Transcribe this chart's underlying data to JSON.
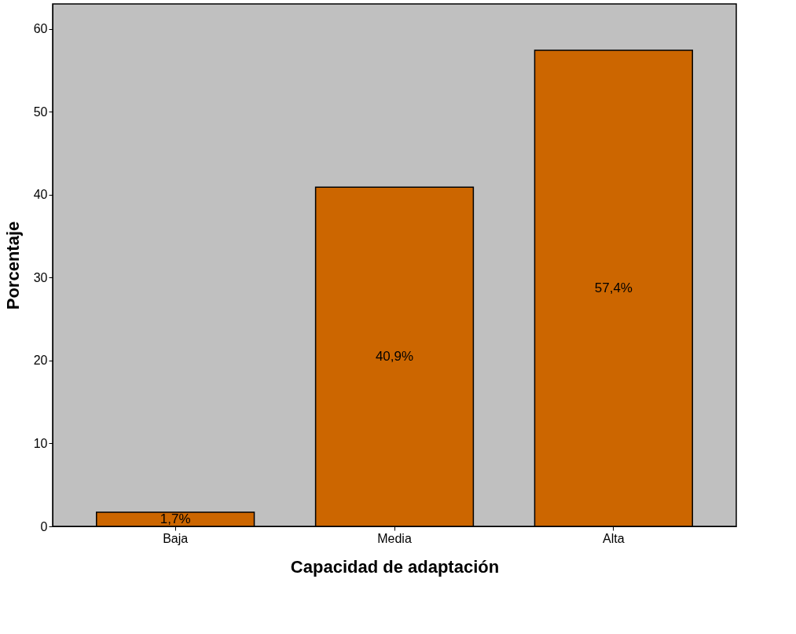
{
  "chart_data": {
    "type": "bar",
    "xlabel": "Capacidad de adaptación",
    "ylabel": "Porcentaje",
    "categories": [
      "Baja",
      "Media",
      "Alta"
    ],
    "values": [
      1.7,
      40.9,
      57.4
    ],
    "value_labels": [
      "1,7%",
      "40,9%",
      "57,4%"
    ],
    "color": "#cc6600",
    "ylim": [
      0,
      63
    ],
    "yticks": [
      0,
      10,
      20,
      30,
      40,
      50,
      60
    ],
    "grid": false
  }
}
